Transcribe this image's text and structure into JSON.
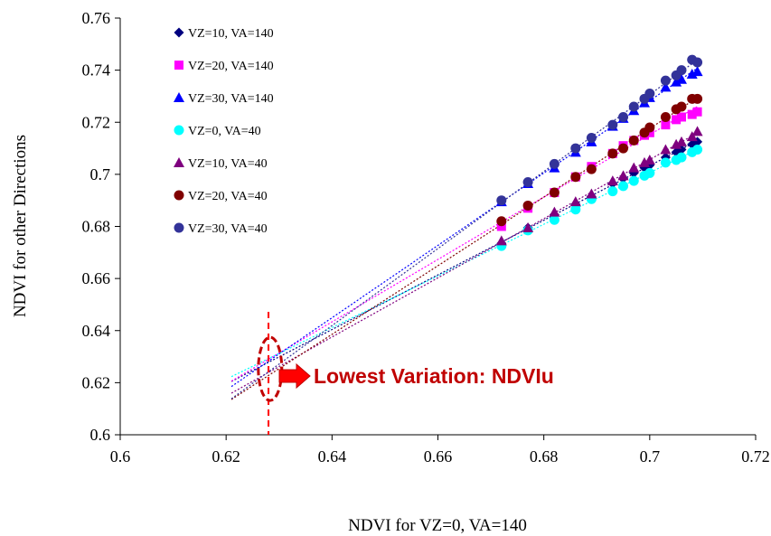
{
  "chart_data": {
    "type": "scatter",
    "title": "",
    "xlabel": "NDVI for VZ=0, VA=140",
    "ylabel": "NDVI for other Directions",
    "xlim": [
      0.6,
      0.72
    ],
    "ylim": [
      0.6,
      0.76
    ],
    "x_ticks": [
      0.6,
      0.62,
      0.64,
      0.66,
      0.68,
      0.7,
      0.72
    ],
    "x_tick_labels": [
      "0.6",
      "0.62",
      "0.64",
      "0.66",
      "0.68",
      "0.7",
      "0.72"
    ],
    "y_ticks": [
      0.6,
      0.62,
      0.64,
      0.66,
      0.68,
      0.7,
      0.72,
      0.74,
      0.76
    ],
    "y_tick_labels": [
      "0.6",
      "0.62",
      "0.64",
      "0.66",
      "0.68",
      "0.7",
      "0.72",
      "0.74",
      "0.76"
    ],
    "grid": false,
    "legend_position": "top-left",
    "x": [
      0.672,
      0.677,
      0.682,
      0.686,
      0.689,
      0.693,
      0.695,
      0.697,
      0.699,
      0.7,
      0.703,
      0.705,
      0.706,
      0.708,
      0.709
    ],
    "trendline_start_x": 0.621,
    "series": [
      {
        "name": "VZ=10, VA=140",
        "marker": "diamond",
        "color": "#00007f",
        "values": [
          0.6735,
          0.6795,
          0.6845,
          0.6885,
          0.6915,
          0.6965,
          0.6985,
          0.7005,
          0.7025,
          0.7035,
          0.7065,
          0.7085,
          0.7095,
          0.7115,
          0.7125
        ]
      },
      {
        "name": "VZ=20, VA=140",
        "marker": "square",
        "color": "#ff00ff",
        "values": [
          0.68,
          0.687,
          0.693,
          0.699,
          0.703,
          0.708,
          0.711,
          0.713,
          0.715,
          0.716,
          0.719,
          0.721,
          0.722,
          0.723,
          0.724
        ]
      },
      {
        "name": "VZ=30, VA=140",
        "marker": "triangle",
        "color": "#0000ff",
        "values": [
          0.6895,
          0.6965,
          0.7025,
          0.7085,
          0.7125,
          0.7185,
          0.7215,
          0.7245,
          0.7275,
          0.7295,
          0.7335,
          0.7355,
          0.7365,
          0.7385,
          0.7395
        ]
      },
      {
        "name": "VZ=0, VA=40",
        "marker": "circle",
        "color": "#00ffff",
        "values": [
          0.6725,
          0.6785,
          0.6825,
          0.6865,
          0.6905,
          0.6935,
          0.6955,
          0.6975,
          0.6995,
          0.7005,
          0.7045,
          0.7055,
          0.7065,
          0.7085,
          0.7095
        ]
      },
      {
        "name": "VZ=10, VA=40",
        "marker": "triangle",
        "color": "#7f007f",
        "values": [
          0.6745,
          0.6795,
          0.6855,
          0.6895,
          0.6925,
          0.6975,
          0.6995,
          0.7025,
          0.7045,
          0.7055,
          0.7095,
          0.7115,
          0.7125,
          0.7145,
          0.7165
        ]
      },
      {
        "name": "VZ=20, VA=40",
        "marker": "circle",
        "color": "#800000",
        "values": [
          0.682,
          0.688,
          0.693,
          0.699,
          0.702,
          0.708,
          0.71,
          0.713,
          0.716,
          0.718,
          0.722,
          0.725,
          0.726,
          0.729,
          0.729
        ]
      },
      {
        "name": "VZ=30, VA=40",
        "marker": "circle",
        "color": "#333399",
        "values": [
          0.69,
          0.697,
          0.704,
          0.71,
          0.714,
          0.719,
          0.722,
          0.726,
          0.729,
          0.731,
          0.736,
          0.738,
          0.74,
          0.744,
          0.743
        ]
      }
    ],
    "annotation": {
      "text": "Lowest Variation: NDVIu",
      "color": "#c00000",
      "arrow_color": "#ff0000",
      "marker_x": 0.628,
      "ellipse_center": [
        0.6283,
        0.6253
      ]
    }
  }
}
